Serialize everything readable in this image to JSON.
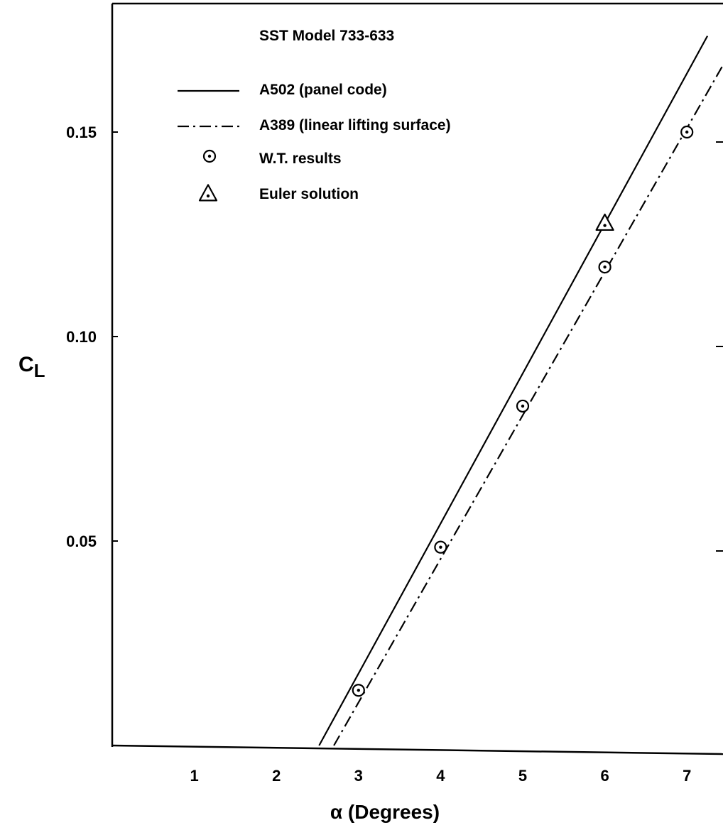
{
  "chart_data": {
    "type": "line",
    "title": "SST Model 733-633",
    "xlabel": "α (Degrees)",
    "ylabel": "C",
    "ylabel_subscript": "L",
    "xlim": [
      0,
      7.5
    ],
    "ylim": [
      0,
      0.18
    ],
    "xticks": [
      1,
      2,
      3,
      4,
      5,
      6,
      7
    ],
    "xtick_labels": [
      "1",
      "2",
      "3",
      "4",
      "5",
      "6",
      "7"
    ],
    "yticks": [
      0.05,
      0.1,
      0.15
    ],
    "ytick_labels": [
      "0.05",
      "0.10",
      "0.15"
    ],
    "grid": false,
    "legend_position": "top-left",
    "series": [
      {
        "name": "A502 (panel code)",
        "kind": "line",
        "style": "solid",
        "x": [
          2.52,
          7.25
        ],
        "y": [
          0.0,
          0.1735
        ]
      },
      {
        "name": "A389 (linear lifting surface)",
        "kind": "line",
        "style": "dashdot",
        "x": [
          2.7,
          7.5
        ],
        "y": [
          0.0,
          0.1685
        ]
      },
      {
        "name": "W.T. results",
        "kind": "scatter",
        "marker": "circle-dot",
        "x": [
          3.0,
          4.0,
          5.0,
          6.0,
          7.0
        ],
        "y": [
          0.0135,
          0.0485,
          0.083,
          0.117,
          0.15
        ]
      },
      {
        "name": "Euler solution",
        "kind": "scatter",
        "marker": "triangle-dot",
        "x": [
          6.0
        ],
        "y": [
          0.1275
        ]
      }
    ]
  }
}
